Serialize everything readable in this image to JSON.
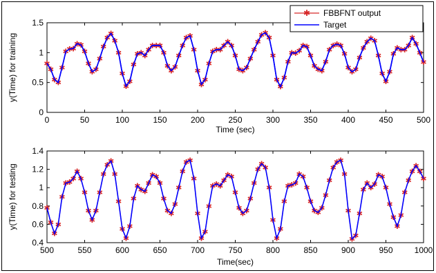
{
  "chart_data": [
    {
      "type": "line",
      "xlabel": "Time (sec)",
      "ylabel": "y(Time) for training",
      "xlim": [
        0,
        500
      ],
      "ylim": [
        0,
        1.5
      ],
      "xticks": [
        "0",
        "50",
        "100",
        "150",
        "200",
        "250",
        "300",
        "350",
        "400",
        "450",
        "500"
      ],
      "yticks": [
        "0",
        "0.5",
        "1",
        "1.5"
      ],
      "legend_position": "top-right",
      "legend": [
        "FBBFNT output",
        "Target"
      ],
      "series": [
        {
          "name": "FBBFNT output",
          "color": "#d62728",
          "marker": "asterisk",
          "x": [
            0,
            5,
            10,
            15,
            20,
            25,
            30,
            35,
            40,
            45,
            50,
            55,
            60,
            65,
            70,
            75,
            80,
            85,
            90,
            95,
            100,
            105,
            110,
            115,
            120,
            125,
            130,
            135,
            140,
            145,
            150,
            155,
            160,
            165,
            170,
            175,
            180,
            185,
            190,
            195,
            200,
            205,
            210,
            215,
            220,
            225,
            230,
            235,
            240,
            245,
            250,
            255,
            260,
            265,
            270,
            275,
            280,
            285,
            290,
            295,
            300,
            305,
            310,
            315,
            320,
            325,
            330,
            335,
            340,
            345,
            350,
            355,
            360,
            365,
            370,
            375,
            380,
            385,
            390,
            395,
            400,
            405,
            410,
            415,
            420,
            425,
            430,
            435,
            440,
            445,
            450,
            455,
            460,
            465,
            470,
            475,
            480,
            485,
            490,
            495,
            500
          ],
          "y": [
            0.82,
            0.72,
            0.55,
            0.5,
            0.75,
            1.02,
            1.06,
            1.07,
            1.15,
            1.13,
            1.02,
            0.82,
            0.68,
            0.72,
            0.9,
            1.1,
            1.25,
            1.32,
            1.2,
            1.0,
            0.65,
            0.44,
            0.52,
            0.8,
            0.98,
            1.0,
            0.95,
            1.05,
            1.12,
            1.12,
            1.12,
            1.0,
            0.78,
            0.7,
            0.76,
            0.95,
            1.12,
            1.25,
            1.28,
            1.05,
            0.7,
            0.47,
            0.55,
            0.82,
            1.02,
            1.05,
            1.05,
            1.12,
            1.18,
            1.12,
            0.95,
            0.72,
            0.7,
            0.75,
            0.9,
            1.05,
            1.18,
            1.3,
            1.33,
            1.25,
            0.95,
            0.55,
            0.43,
            0.58,
            0.85,
            1.0,
            0.99,
            1.03,
            1.12,
            1.1,
            0.95,
            0.78,
            0.72,
            0.7,
            0.85,
            1.05,
            1.12,
            1.14,
            1.12,
            0.98,
            0.75,
            0.68,
            0.72,
            0.92,
            1.08,
            1.18,
            1.24,
            1.2,
            0.95,
            0.65,
            0.52,
            0.68,
            0.98,
            1.08,
            1.05,
            1.05,
            1.12,
            1.25,
            1.15,
            1.0,
            0.84
          ]
        },
        {
          "name": "Target",
          "color": "#0000ff",
          "x": [
            0,
            5,
            10,
            15,
            20,
            25,
            30,
            35,
            40,
            45,
            50,
            55,
            60,
            65,
            70,
            75,
            80,
            85,
            90,
            95,
            100,
            105,
            110,
            115,
            120,
            125,
            130,
            135,
            140,
            145,
            150,
            155,
            160,
            165,
            170,
            175,
            180,
            185,
            190,
            195,
            200,
            205,
            210,
            215,
            220,
            225,
            230,
            235,
            240,
            245,
            250,
            255,
            260,
            265,
            270,
            275,
            280,
            285,
            290,
            295,
            300,
            305,
            310,
            315,
            320,
            325,
            330,
            335,
            340,
            345,
            350,
            355,
            360,
            365,
            370,
            375,
            380,
            385,
            390,
            395,
            400,
            405,
            410,
            415,
            420,
            425,
            430,
            435,
            440,
            445,
            450,
            455,
            460,
            465,
            470,
            475,
            480,
            485,
            490,
            495,
            500
          ],
          "y": [
            0.82,
            0.72,
            0.55,
            0.5,
            0.75,
            1.02,
            1.06,
            1.07,
            1.15,
            1.13,
            1.02,
            0.82,
            0.68,
            0.72,
            0.9,
            1.1,
            1.25,
            1.32,
            1.2,
            1.0,
            0.65,
            0.44,
            0.52,
            0.8,
            0.98,
            1.0,
            0.95,
            1.05,
            1.12,
            1.12,
            1.12,
            1.0,
            0.78,
            0.7,
            0.76,
            0.95,
            1.12,
            1.25,
            1.28,
            1.05,
            0.7,
            0.47,
            0.55,
            0.82,
            1.02,
            1.05,
            1.05,
            1.12,
            1.18,
            1.12,
            0.95,
            0.72,
            0.7,
            0.75,
            0.9,
            1.05,
            1.18,
            1.3,
            1.33,
            1.25,
            0.95,
            0.55,
            0.43,
            0.58,
            0.85,
            1.0,
            0.99,
            1.03,
            1.12,
            1.1,
            0.95,
            0.78,
            0.72,
            0.7,
            0.85,
            1.05,
            1.12,
            1.14,
            1.12,
            0.98,
            0.75,
            0.68,
            0.72,
            0.92,
            1.08,
            1.18,
            1.24,
            1.2,
            0.95,
            0.65,
            0.52,
            0.68,
            0.98,
            1.08,
            1.05,
            1.05,
            1.12,
            1.25,
            1.15,
            1.0,
            0.84
          ]
        }
      ]
    },
    {
      "type": "line",
      "xlabel": "Time(sec)",
      "ylabel": "y(Time) for testing",
      "xlim": [
        500,
        1000
      ],
      "ylim": [
        0.4,
        1.4
      ],
      "xticks": [
        "500",
        "550",
        "600",
        "650",
        "700",
        "750",
        "800",
        "850",
        "900",
        "950",
        "1000"
      ],
      "yticks": [
        "0.4",
        "0.6",
        "0.8",
        "1",
        "1.2",
        "1.4"
      ],
      "series": [
        {
          "name": "FBBFNT output",
          "color": "#d62728",
          "marker": "asterisk",
          "x": [
            500,
            505,
            510,
            515,
            520,
            525,
            530,
            535,
            540,
            545,
            550,
            555,
            560,
            565,
            570,
            575,
            580,
            585,
            590,
            595,
            600,
            605,
            610,
            615,
            620,
            625,
            630,
            635,
            640,
            645,
            650,
            655,
            660,
            665,
            670,
            675,
            680,
            685,
            690,
            695,
            700,
            705,
            710,
            715,
            720,
            725,
            730,
            735,
            740,
            745,
            750,
            755,
            760,
            765,
            770,
            775,
            780,
            785,
            790,
            795,
            800,
            805,
            810,
            815,
            820,
            825,
            830,
            835,
            840,
            845,
            850,
            855,
            860,
            865,
            870,
            875,
            880,
            885,
            890,
            895,
            900,
            905,
            910,
            915,
            920,
            925,
            930,
            935,
            940,
            945,
            950,
            955,
            960,
            965,
            970,
            975,
            980,
            985,
            990,
            995,
            1000
          ],
          "y": [
            0.78,
            0.62,
            0.5,
            0.6,
            0.9,
            1.05,
            1.06,
            1.1,
            1.18,
            1.1,
            0.95,
            0.75,
            0.65,
            0.75,
            0.95,
            1.15,
            1.25,
            1.29,
            1.15,
            0.85,
            0.55,
            0.45,
            0.58,
            0.88,
            1.02,
            0.98,
            0.96,
            1.05,
            1.14,
            1.12,
            1.05,
            0.88,
            0.75,
            0.72,
            0.82,
            1.0,
            1.18,
            1.28,
            1.3,
            1.1,
            0.72,
            0.45,
            0.52,
            0.8,
            1.02,
            1.04,
            1.02,
            1.08,
            1.14,
            1.12,
            0.95,
            0.78,
            0.72,
            0.75,
            0.88,
            1.05,
            1.2,
            1.26,
            1.22,
            1.0,
            0.65,
            0.45,
            0.55,
            0.85,
            1.02,
            1.03,
            1.05,
            1.15,
            1.12,
            1.0,
            0.85,
            0.75,
            0.73,
            0.78,
            0.92,
            1.08,
            1.22,
            1.28,
            1.3,
            1.15,
            0.75,
            0.44,
            0.48,
            0.72,
            0.98,
            1.05,
            1.0,
            1.04,
            1.14,
            1.12,
            1.0,
            0.82,
            0.68,
            0.58,
            0.7,
            0.95,
            1.08,
            1.18,
            1.24,
            1.18,
            1.1
          ]
        },
        {
          "name": "Target",
          "color": "#0000ff",
          "x": [
            500,
            505,
            510,
            515,
            520,
            525,
            530,
            535,
            540,
            545,
            550,
            555,
            560,
            565,
            570,
            575,
            580,
            585,
            590,
            595,
            600,
            605,
            610,
            615,
            620,
            625,
            630,
            635,
            640,
            645,
            650,
            655,
            660,
            665,
            670,
            675,
            680,
            685,
            690,
            695,
            700,
            705,
            710,
            715,
            720,
            725,
            730,
            735,
            740,
            745,
            750,
            755,
            760,
            765,
            770,
            775,
            780,
            785,
            790,
            795,
            800,
            805,
            810,
            815,
            820,
            825,
            830,
            835,
            840,
            845,
            850,
            855,
            860,
            865,
            870,
            875,
            880,
            885,
            890,
            895,
            900,
            905,
            910,
            915,
            920,
            925,
            930,
            935,
            940,
            945,
            950,
            955,
            960,
            965,
            970,
            975,
            980,
            985,
            990,
            995,
            1000
          ],
          "y": [
            0.78,
            0.62,
            0.5,
            0.6,
            0.9,
            1.05,
            1.06,
            1.1,
            1.18,
            1.1,
            0.95,
            0.75,
            0.65,
            0.75,
            0.95,
            1.15,
            1.25,
            1.29,
            1.15,
            0.85,
            0.55,
            0.45,
            0.58,
            0.88,
            1.02,
            0.98,
            0.96,
            1.05,
            1.14,
            1.12,
            1.05,
            0.88,
            0.75,
            0.72,
            0.82,
            1.0,
            1.18,
            1.28,
            1.3,
            1.1,
            0.72,
            0.45,
            0.52,
            0.8,
            1.02,
            1.04,
            1.02,
            1.08,
            1.14,
            1.12,
            0.95,
            0.78,
            0.72,
            0.75,
            0.88,
            1.05,
            1.2,
            1.26,
            1.22,
            1.0,
            0.65,
            0.45,
            0.55,
            0.85,
            1.02,
            1.03,
            1.05,
            1.15,
            1.12,
            1.0,
            0.85,
            0.75,
            0.73,
            0.78,
            0.92,
            1.08,
            1.22,
            1.28,
            1.3,
            1.15,
            0.75,
            0.44,
            0.48,
            0.72,
            0.98,
            1.05,
            1.0,
            1.04,
            1.14,
            1.12,
            1.0,
            0.82,
            0.68,
            0.58,
            0.7,
            0.95,
            1.08,
            1.18,
            1.24,
            1.18,
            1.1
          ]
        }
      ]
    }
  ]
}
